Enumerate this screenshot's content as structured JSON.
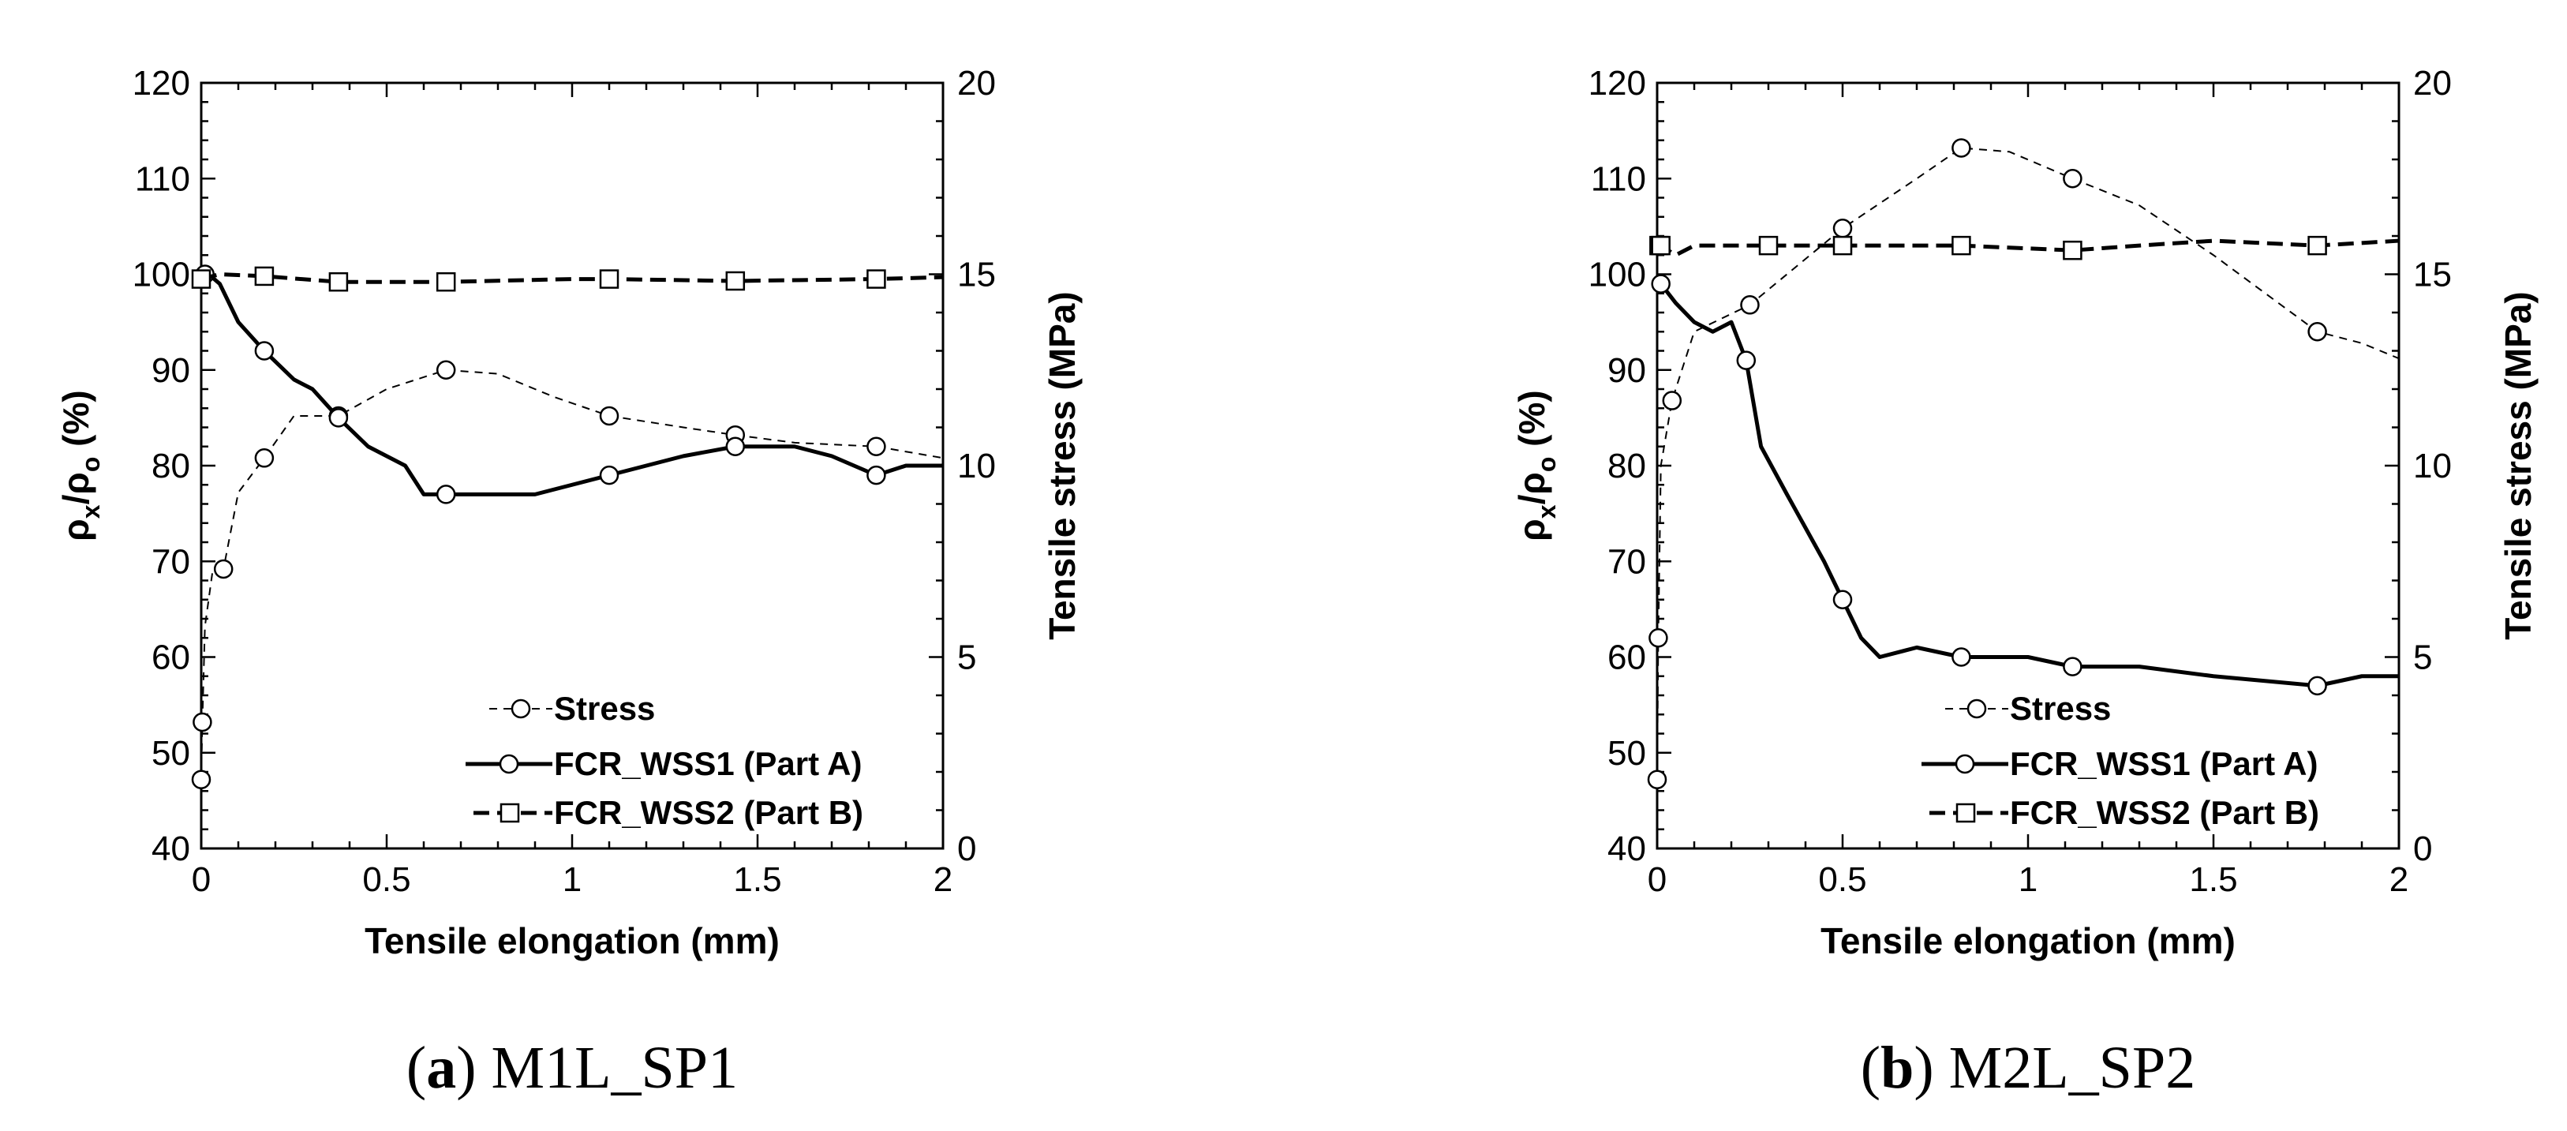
{
  "chart_data": [
    {
      "type": "line",
      "caption_letter": "a",
      "caption_text": "M1L_SP1",
      "xlabel": "Tensile elongation (mm)",
      "ylabel_left": "ρ",
      "ylabel_left_sub1": "x",
      "ylabel_left_mid": "/ρ",
      "ylabel_left_sub2": "o",
      "ylabel_left_unit": " (%)",
      "ylabel_right": "Tensile stress (MPa)",
      "xlim": [
        0,
        2
      ],
      "ylim_left": [
        40,
        120
      ],
      "ylim_right": [
        0,
        20
      ],
      "x_ticks": [
        "0",
        "0.5",
        "1",
        "1.5",
        "2"
      ],
      "y_left_ticks": [
        "40",
        "50",
        "60",
        "70",
        "80",
        "90",
        "100",
        "110",
        "120"
      ],
      "y_right_ticks": [
        "0",
        "5",
        "10",
        "15",
        "20"
      ],
      "legend": [
        "Stress",
        "FCR_WSS1 (Part A)",
        "FCR_WSS2 (Part B)"
      ],
      "series": [
        {
          "name": "Stress",
          "axis": "right",
          "style": "thin-dashed",
          "marker": "circle",
          "x": [
            0,
            0.003,
            0.01,
            0.03,
            0.06,
            0.1,
            0.17,
            0.25,
            0.37,
            0.5,
            0.66,
            0.8,
            0.95,
            1.1,
            1.3,
            1.44,
            1.6,
            1.82,
            2.0
          ],
          "y": [
            1.8,
            3.3,
            5.8,
            7.2,
            7.3,
            9.3,
            10.2,
            11.3,
            11.3,
            12.0,
            12.5,
            12.4,
            11.8,
            11.3,
            11.0,
            10.8,
            10.6,
            10.5,
            10.2
          ],
          "marker_x": [
            0,
            0.003,
            0.06,
            0.17,
            0.37,
            0.66,
            1.1,
            1.44,
            1.82
          ]
        },
        {
          "name": "FCR_WSS1 (Part A)",
          "axis": "left",
          "style": "thick-solid",
          "marker": "circle",
          "x": [
            0,
            0.02,
            0.05,
            0.1,
            0.17,
            0.25,
            0.3,
            0.37,
            0.45,
            0.55,
            0.6,
            0.66,
            0.8,
            0.9,
            1.0,
            1.1,
            1.2,
            1.3,
            1.44,
            1.6,
            1.7,
            1.82,
            1.9,
            2.0
          ],
          "y": [
            100,
            100,
            99,
            95,
            92,
            89,
            88,
            85,
            82,
            80,
            77,
            77,
            77,
            77,
            78,
            79,
            80,
            81,
            82,
            82,
            81,
            79,
            80,
            80
          ],
          "marker_x": [
            0.01,
            0.17,
            0.37,
            0.66,
            1.1,
            1.44,
            1.82
          ]
        },
        {
          "name": "FCR_WSS2 (Part B)",
          "axis": "left",
          "style": "thick-dashed",
          "marker": "square",
          "x": [
            0,
            0.05,
            0.17,
            0.37,
            0.66,
            1.0,
            1.1,
            1.44,
            1.82,
            2.0
          ],
          "y": [
            99.5,
            100,
            99.8,
            99.2,
            99.2,
            99.5,
            99.5,
            99.3,
            99.5,
            99.7
          ],
          "marker_x": [
            0,
            0.17,
            0.37,
            0.66,
            1.1,
            1.44,
            1.82
          ]
        }
      ]
    },
    {
      "type": "line",
      "caption_letter": "b",
      "caption_text": "M2L_SP2",
      "xlabel": "Tensile elongation (mm)",
      "ylabel_left": "ρ",
      "ylabel_left_sub1": "x",
      "ylabel_left_mid": "/ρ",
      "ylabel_left_sub2": "o",
      "ylabel_left_unit": " (%)",
      "ylabel_right": "Tensile stress (MPa)",
      "xlim": [
        0,
        2
      ],
      "ylim_left": [
        40,
        120
      ],
      "ylim_right": [
        0,
        20
      ],
      "x_ticks": [
        "0",
        "0.5",
        "1",
        "1.5",
        "2"
      ],
      "y_left_ticks": [
        "40",
        "50",
        "60",
        "70",
        "80",
        "90",
        "100",
        "110",
        "120"
      ],
      "y_right_ticks": [
        "0",
        "5",
        "10",
        "15",
        "20"
      ],
      "legend": [
        "Stress",
        "FCR_WSS1 (Part A)",
        "FCR_WSS2 (Part B)"
      ],
      "series": [
        {
          "name": "Stress",
          "axis": "right",
          "style": "thin-dashed",
          "marker": "circle",
          "x": [
            0,
            0.003,
            0.01,
            0.04,
            0.1,
            0.25,
            0.5,
            0.7,
            0.82,
            0.95,
            1.12,
            1.3,
            1.5,
            1.78,
            1.9,
            2.0
          ],
          "y": [
            1.8,
            5.5,
            10.0,
            11.7,
            13.5,
            14.2,
            16.2,
            17.5,
            18.3,
            18.2,
            17.5,
            16.8,
            15.5,
            13.5,
            13.2,
            12.8
          ],
          "marker_x": [
            0,
            0.003,
            0.04,
            0.25,
            0.5,
            0.82,
            1.12,
            1.78
          ]
        },
        {
          "name": "FCR_WSS1 (Part A)",
          "axis": "left",
          "style": "thick-solid",
          "marker": "circle",
          "x": [
            0,
            0.01,
            0.05,
            0.1,
            0.15,
            0.2,
            0.24,
            0.28,
            0.35,
            0.45,
            0.5,
            0.55,
            0.6,
            0.7,
            0.82,
            1.0,
            1.12,
            1.3,
            1.5,
            1.78,
            1.9,
            2.0
          ],
          "y": [
            99,
            99,
            97,
            95,
            94,
            95,
            91,
            82,
            77,
            70,
            66,
            62,
            60,
            61,
            60,
            60,
            59,
            59,
            58,
            57,
            58,
            58
          ],
          "marker_x": [
            0.01,
            0.24,
            0.5,
            0.82,
            1.12,
            1.78
          ]
        },
        {
          "name": "FCR_WSS2 (Part B)",
          "axis": "left",
          "style": "thick-dashed",
          "marker": "square",
          "x": [
            0,
            0.01,
            0.05,
            0.1,
            0.3,
            0.5,
            0.82,
            1.12,
            1.3,
            1.5,
            1.78,
            2.0
          ],
          "y": [
            103,
            103,
            102,
            103,
            103,
            103,
            103,
            102.5,
            103,
            103.5,
            103,
            103.5
          ],
          "marker_x": [
            0.005,
            0.01,
            0.3,
            0.5,
            0.82,
            1.12,
            1.78
          ]
        }
      ]
    }
  ]
}
